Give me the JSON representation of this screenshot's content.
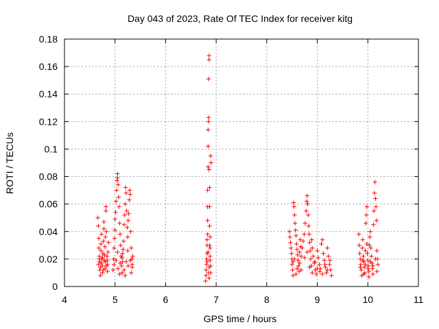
{
  "chart_data": {
    "type": "scatter",
    "title": "Day 043 of 2023, Rate Of TEC Index for receiver kitg",
    "xlabel": "GPS time / hours",
    "ylabel": "ROTI / TECUs",
    "xlim": [
      4,
      11
    ],
    "ylim": [
      0,
      0.18
    ],
    "xticks": [
      "4",
      "5",
      "6",
      "7",
      "8",
      "9",
      "10",
      "11"
    ],
    "yticks": [
      "0",
      "0.02",
      "0.04",
      "0.06",
      "0.08",
      "0.1",
      "0.12",
      "0.14",
      "0.16",
      "0.18"
    ],
    "grid": true,
    "marker": "+",
    "series": [
      {
        "name": "ROTI",
        "color": "#ff0000",
        "points": [
          [
            4.66,
            0.05
          ],
          [
            4.67,
            0.044
          ],
          [
            4.68,
            0.035
          ],
          [
            4.68,
            0.028
          ],
          [
            4.69,
            0.022
          ],
          [
            4.7,
            0.018
          ],
          [
            4.7,
            0.012
          ],
          [
            4.71,
            0.008
          ],
          [
            4.72,
            0.026
          ],
          [
            4.72,
            0.031
          ],
          [
            4.73,
            0.038
          ],
          [
            4.74,
            0.02
          ],
          [
            4.75,
            0.015
          ],
          [
            4.75,
            0.01
          ],
          [
            4.76,
            0.024
          ],
          [
            4.77,
            0.033
          ],
          [
            4.78,
            0.042
          ],
          [
            4.78,
            0.047
          ],
          [
            4.79,
            0.019
          ],
          [
            4.8,
            0.013
          ],
          [
            4.8,
            0.029
          ],
          [
            4.81,
            0.036
          ],
          [
            4.82,
            0.055
          ],
          [
            4.82,
            0.058
          ],
          [
            4.83,
            0.04
          ],
          [
            4.84,
            0.022
          ],
          [
            4.85,
            0.016
          ],
          [
            4.85,
            0.011
          ],
          [
            4.86,
            0.025
          ],
          [
            4.87,
            0.032
          ],
          [
            4.67,
            0.016
          ],
          [
            4.69,
            0.02
          ],
          [
            4.71,
            0.014
          ],
          [
            4.73,
            0.017
          ],
          [
            4.75,
            0.021
          ],
          [
            4.77,
            0.012
          ],
          [
            4.79,
            0.023
          ],
          [
            4.81,
            0.018
          ],
          [
            4.83,
            0.015
          ],
          [
            4.85,
            0.019
          ],
          [
            4.96,
            0.012
          ],
          [
            4.97,
            0.02
          ],
          [
            4.98,
            0.028
          ],
          [
            4.99,
            0.035
          ],
          [
            5.0,
            0.041
          ],
          [
            5.0,
            0.049
          ],
          [
            5.01,
            0.054
          ],
          [
            5.02,
            0.062
          ],
          [
            5.03,
            0.07
          ],
          [
            5.04,
            0.077
          ],
          [
            5.05,
            0.082
          ],
          [
            5.05,
            0.079
          ],
          [
            5.06,
            0.074
          ],
          [
            5.07,
            0.065
          ],
          [
            5.08,
            0.058
          ],
          [
            5.09,
            0.046
          ],
          [
            5.1,
            0.038
          ],
          [
            5.11,
            0.03
          ],
          [
            5.12,
            0.022
          ],
          [
            5.13,
            0.015
          ],
          [
            5.14,
            0.01
          ],
          [
            5.15,
            0.018
          ],
          [
            5.16,
            0.027
          ],
          [
            5.17,
            0.033
          ],
          [
            5.18,
            0.045
          ],
          [
            5.19,
            0.052
          ],
          [
            5.2,
            0.06
          ],
          [
            5.21,
            0.072
          ],
          [
            5.22,
            0.068
          ],
          [
            5.23,
            0.055
          ],
          [
            5.24,
            0.043
          ],
          [
            5.25,
            0.036
          ],
          [
            5.26,
            0.048
          ],
          [
            5.27,
            0.053
          ],
          [
            5.28,
            0.063
          ],
          [
            5.29,
            0.07
          ],
          [
            5.3,
            0.067
          ],
          [
            5.31,
            0.04
          ],
          [
            5.32,
            0.028
          ],
          [
            5.33,
            0.02
          ],
          [
            5.34,
            0.014
          ],
          [
            5.35,
            0.022
          ],
          [
            4.98,
            0.016
          ],
          [
            5.02,
            0.019
          ],
          [
            5.06,
            0.013
          ],
          [
            5.1,
            0.017
          ],
          [
            5.14,
            0.021
          ],
          [
            5.18,
            0.012
          ],
          [
            5.22,
            0.018
          ],
          [
            5.26,
            0.015
          ],
          [
            5.3,
            0.019
          ],
          [
            5.34,
            0.016
          ],
          [
            5.05,
            0.025
          ],
          [
            5.15,
            0.024
          ],
          [
            5.25,
            0.026
          ],
          [
            5.09,
            0.009
          ],
          [
            5.2,
            0.008
          ],
          [
            5.32,
            0.01
          ],
          [
            6.79,
            0.004
          ],
          [
            6.8,
            0.008
          ],
          [
            6.8,
            0.012
          ],
          [
            6.81,
            0.016
          ],
          [
            6.81,
            0.02
          ],
          [
            6.82,
            0.024
          ],
          [
            6.82,
            0.03
          ],
          [
            6.82,
            0.034
          ],
          [
            6.83,
            0.048
          ],
          [
            6.83,
            0.058
          ],
          [
            6.83,
            0.07
          ],
          [
            6.84,
            0.087
          ],
          [
            6.84,
            0.102
          ],
          [
            6.84,
            0.114
          ],
          [
            6.85,
            0.12
          ],
          [
            6.85,
            0.123
          ],
          [
            6.85,
            0.151
          ],
          [
            6.86,
            0.165
          ],
          [
            6.86,
            0.168
          ],
          [
            6.86,
            0.085
          ],
          [
            6.87,
            0.072
          ],
          [
            6.87,
            0.058
          ],
          [
            6.87,
            0.044
          ],
          [
            6.88,
            0.036
          ],
          [
            6.88,
            0.028
          ],
          [
            6.88,
            0.022
          ],
          [
            6.89,
            0.015
          ],
          [
            6.89,
            0.01
          ],
          [
            6.89,
            0.095
          ],
          [
            6.9,
            0.09
          ],
          [
            6.82,
            0.018
          ],
          [
            6.84,
            0.025
          ],
          [
            6.86,
            0.014
          ],
          [
            6.88,
            0.019
          ],
          [
            6.85,
            0.01
          ],
          [
            6.87,
            0.03
          ],
          [
            6.83,
            0.038
          ],
          [
            6.86,
            0.006
          ],
          [
            8.45,
            0.04
          ],
          [
            8.46,
            0.036
          ],
          [
            8.47,
            0.032
          ],
          [
            8.48,
            0.028
          ],
          [
            8.49,
            0.024
          ],
          [
            8.5,
            0.02
          ],
          [
            8.5,
            0.016
          ],
          [
            8.51,
            0.012
          ],
          [
            8.52,
            0.008
          ],
          [
            8.53,
            0.061
          ],
          [
            8.54,
            0.058
          ],
          [
            8.55,
            0.052
          ],
          [
            8.56,
            0.046
          ],
          [
            8.57,
            0.041
          ],
          [
            8.58,
            0.037
          ],
          [
            8.59,
            0.031
          ],
          [
            8.6,
            0.027
          ],
          [
            8.61,
            0.023
          ],
          [
            8.62,
            0.019
          ],
          [
            8.63,
            0.015
          ],
          [
            8.64,
            0.011
          ],
          [
            8.65,
            0.025
          ],
          [
            8.66,
            0.034
          ],
          [
            8.67,
            0.029
          ],
          [
            8.68,
            0.022
          ],
          [
            8.7,
            0.028
          ],
          [
            8.72,
            0.033
          ],
          [
            8.74,
            0.038
          ],
          [
            8.76,
            0.046
          ],
          [
            8.78,
            0.055
          ],
          [
            8.79,
            0.062
          ],
          [
            8.8,
            0.066
          ],
          [
            8.81,
            0.06
          ],
          [
            8.82,
            0.052
          ],
          [
            8.83,
            0.044
          ],
          [
            8.84,
            0.038
          ],
          [
            8.85,
            0.032
          ],
          [
            8.86,
            0.026
          ],
          [
            8.87,
            0.02
          ],
          [
            8.88,
            0.015
          ],
          [
            8.89,
            0.034
          ],
          [
            8.9,
            0.028
          ],
          [
            8.92,
            0.022
          ],
          [
            8.94,
            0.017
          ],
          [
            8.96,
            0.012
          ],
          [
            8.98,
            0.009
          ],
          [
            9.0,
            0.026
          ],
          [
            9.02,
            0.021
          ],
          [
            9.04,
            0.016
          ],
          [
            9.06,
            0.013
          ],
          [
            9.08,
            0.031
          ],
          [
            9.1,
            0.034
          ],
          [
            9.12,
            0.024
          ],
          [
            9.14,
            0.019
          ],
          [
            9.16,
            0.014
          ],
          [
            9.18,
            0.01
          ],
          [
            9.2,
            0.028
          ],
          [
            9.22,
            0.022
          ],
          [
            9.24,
            0.016
          ],
          [
            9.26,
            0.012
          ],
          [
            9.28,
            0.008
          ],
          [
            8.55,
            0.02
          ],
          [
            8.6,
            0.013
          ],
          [
            8.65,
            0.017
          ],
          [
            8.75,
            0.021
          ],
          [
            8.85,
            0.014
          ],
          [
            8.95,
            0.018
          ],
          [
            9.05,
            0.011
          ],
          [
            9.15,
            0.016
          ],
          [
            9.25,
            0.019
          ],
          [
            8.52,
            0.018
          ],
          [
            8.58,
            0.009
          ],
          [
            8.68,
            0.012
          ],
          [
            8.8,
            0.025
          ],
          [
            8.9,
            0.01
          ],
          [
            9.0,
            0.013
          ],
          [
            9.1,
            0.009
          ],
          [
            9.2,
            0.012
          ],
          [
            9.82,
            0.038
          ],
          [
            9.83,
            0.03
          ],
          [
            9.84,
            0.024
          ],
          [
            9.85,
            0.02
          ],
          [
            9.86,
            0.016
          ],
          [
            9.87,
            0.012
          ],
          [
            9.88,
            0.008
          ],
          [
            9.89,
            0.028
          ],
          [
            9.9,
            0.034
          ],
          [
            9.91,
            0.022
          ],
          [
            9.92,
            0.018
          ],
          [
            9.93,
            0.014
          ],
          [
            9.94,
            0.01
          ],
          [
            9.95,
            0.026
          ],
          [
            9.96,
            0.046
          ],
          [
            9.97,
            0.052
          ],
          [
            9.98,
            0.058
          ],
          [
            9.98,
            0.031
          ],
          [
            9.99,
            0.024
          ],
          [
            10.0,
            0.019
          ],
          [
            10.01,
            0.015
          ],
          [
            10.02,
            0.011
          ],
          [
            10.03,
            0.03
          ],
          [
            10.04,
            0.036
          ],
          [
            10.05,
            0.04
          ],
          [
            10.06,
            0.028
          ],
          [
            10.07,
            0.022
          ],
          [
            10.08,
            0.017
          ],
          [
            10.09,
            0.013
          ],
          [
            10.1,
            0.009
          ],
          [
            10.11,
            0.045
          ],
          [
            10.12,
            0.055
          ],
          [
            10.13,
            0.068
          ],
          [
            10.14,
            0.076
          ],
          [
            10.15,
            0.064
          ],
          [
            10.16,
            0.058
          ],
          [
            10.17,
            0.048
          ],
          [
            10.18,
            0.026
          ],
          [
            10.19,
            0.02
          ],
          [
            10.2,
            0.016
          ],
          [
            9.85,
            0.014
          ],
          [
            9.9,
            0.019
          ],
          [
            9.95,
            0.016
          ],
          [
            10.0,
            0.013
          ],
          [
            10.05,
            0.018
          ],
          [
            10.1,
            0.015
          ],
          [
            10.15,
            0.02
          ],
          [
            10.02,
            0.007
          ],
          [
            9.92,
            0.009
          ],
          [
            10.18,
            0.011
          ]
        ]
      }
    ]
  }
}
